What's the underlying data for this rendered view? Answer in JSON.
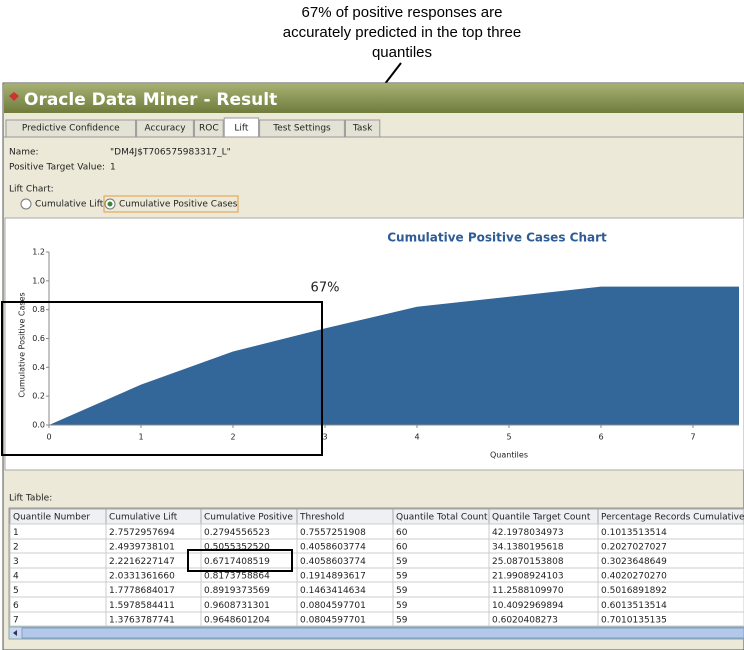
{
  "annotation": [
    "67% of positive responses are",
    "accurately predicted in the top three",
    "quantiles"
  ],
  "window": {
    "title": "Oracle Data Miner - Result",
    "tabs": [
      "Predictive Confidence",
      "Accuracy",
      "ROC",
      "Lift",
      "Test Settings",
      "Task"
    ],
    "name_label": "Name:",
    "name_value": "\"DM4J$T706575983317_L\"",
    "target_label": "Positive Target Value:",
    "target_value": "1",
    "lift_chart_label": "Lift Chart:",
    "radio_options": [
      "Cumulative Lift",
      "Cumulative Positive Cases"
    ]
  },
  "chart_data": {
    "type": "area",
    "title": "Cumulative Positive Cases Chart",
    "x_label": "Quantiles",
    "y_label": "Cumulative Positive Cases",
    "x": [
      0,
      1,
      2,
      3,
      4,
      5,
      6,
      7,
      7.5
    ],
    "values": [
      0,
      0.28,
      0.51,
      0.67,
      0.82,
      0.89,
      0.96,
      0.96,
      0.96
    ],
    "color": "#336699",
    "xlim": [
      0,
      7.5
    ],
    "ylim": [
      0,
      1.2
    ],
    "xticks": [
      0,
      1,
      2,
      3,
      4,
      5,
      6,
      7
    ],
    "yticks": [
      {
        "value": 0,
        "label": "0.0"
      },
      0.2,
      0.4,
      0.6,
      0.8,
      {
        "value": 1,
        "label": "1.0"
      },
      1.2
    ],
    "annotation": "67%"
  },
  "lift_table": {
    "label": "Lift Table:",
    "columns": [
      "Quantile Number",
      "Cumulative Lift",
      "Cumulative Positive",
      "Threshold",
      "Quantile Total Count",
      "Quantile Target Count",
      "Percentage Records Cumulative"
    ],
    "rows": [
      [
        "1",
        "2.7572957694",
        "0.2794556523",
        "0.7557251908",
        "60",
        "42.1978034973",
        "0.1013513514"
      ],
      [
        "2",
        "2.4939738101",
        "0.5055352520",
        "0.4058603774",
        "60",
        "34.1380195618",
        "0.2027027027"
      ],
      [
        "3",
        "2.2216227147",
        "0.6717408519",
        "0.4058603774",
        "59",
        "25.0870153808",
        "0.3023648649"
      ],
      [
        "4",
        "2.0331361660",
        "0.8173758864",
        "0.1914893617",
        "59",
        "21.9908924103",
        "0.4020270270"
      ],
      [
        "5",
        "1.7778684017",
        "0.8919373569",
        "0.1463414634",
        "59",
        "11.2588109970",
        "0.5016891892"
      ],
      [
        "6",
        "1.5978584411",
        "0.9608731301",
        "0.0804597701",
        "59",
        "10.4092969894",
        "0.6013513514"
      ],
      [
        "7",
        "1.3763787741",
        "0.9648601204",
        "0.0804597701",
        "59",
        "0.6020408273",
        "0.7010135135"
      ]
    ]
  }
}
